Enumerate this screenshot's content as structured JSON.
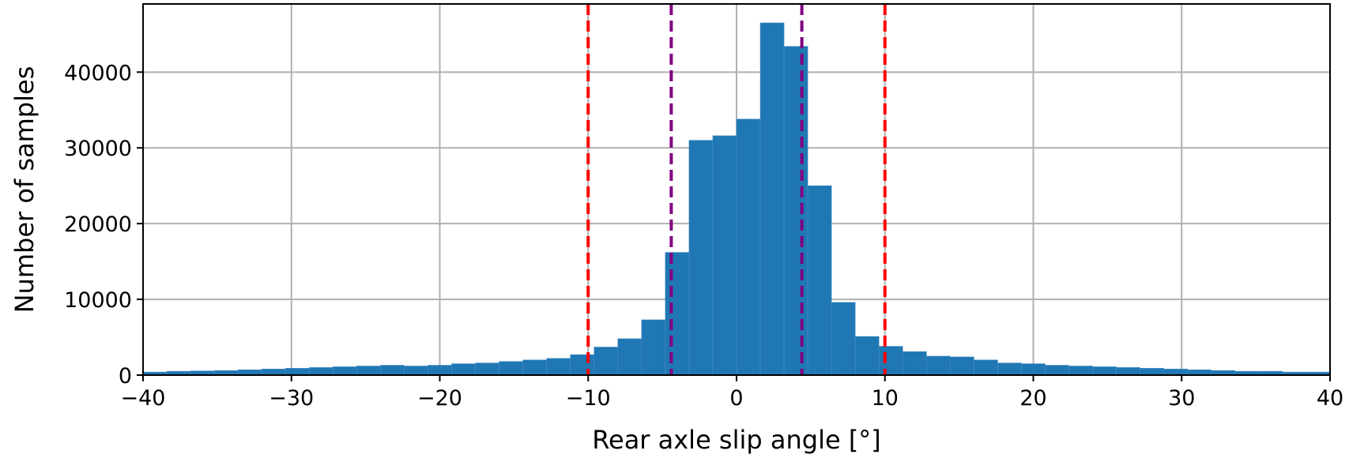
{
  "chart_data": {
    "type": "bar",
    "title": "",
    "xlabel": "Rear axle slip angle [°]",
    "ylabel": "Number of samples",
    "xlim": [
      -40,
      40
    ],
    "ylim": [
      0,
      49000
    ],
    "xticks": [
      -40,
      -30,
      -20,
      -10,
      0,
      10,
      20,
      30,
      40
    ],
    "xtick_labels": [
      "−40",
      "−30",
      "−20",
      "−10",
      "0",
      "10",
      "20",
      "30",
      "40"
    ],
    "yticks": [
      0,
      10000,
      20000,
      30000,
      40000
    ],
    "ytick_labels": [
      "0",
      "10000",
      "20000",
      "30000",
      "40000"
    ],
    "grid": true,
    "bar_color": "#1f77b4",
    "bin_width": 1.6,
    "bin_start": -40,
    "values": [
      400,
      500,
      550,
      600,
      700,
      800,
      900,
      1000,
      1100,
      1200,
      1300,
      1200,
      1300,
      1500,
      1600,
      1800,
      2000,
      2200,
      2700,
      3700,
      4800,
      7300,
      16200,
      31000,
      31600,
      33800,
      46500,
      43400,
      25000,
      9600,
      5100,
      3800,
      3100,
      2500,
      2400,
      2000,
      1600,
      1500,
      1300,
      1200,
      1100,
      1000,
      900,
      800,
      700,
      600,
      500,
      500,
      400,
      400
    ],
    "vlines": [
      {
        "x": -10,
        "color": "#ff0000",
        "style": "dashed"
      },
      {
        "x": 10,
        "color": "#ff0000",
        "style": "dashed"
      },
      {
        "x": -4.4,
        "color": "#800080",
        "style": "dashed"
      },
      {
        "x": 4.4,
        "color": "#800080",
        "style": "dashed"
      }
    ]
  }
}
